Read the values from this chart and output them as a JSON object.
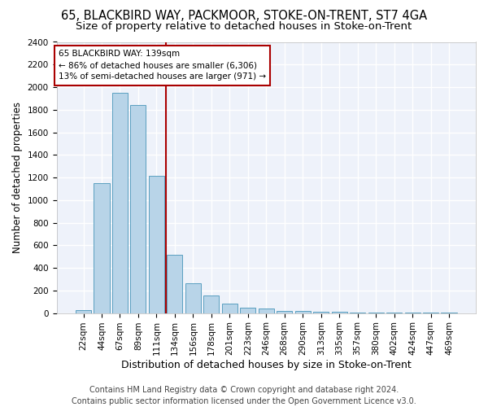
{
  "title1": "65, BLACKBIRD WAY, PACKMOOR, STOKE-ON-TRENT, ST7 4GA",
  "title2": "Size of property relative to detached houses in Stoke-on-Trent",
  "xlabel": "Distribution of detached houses by size in Stoke-on-Trent",
  "ylabel": "Number of detached properties",
  "categories": [
    "22sqm",
    "44sqm",
    "67sqm",
    "89sqm",
    "111sqm",
    "134sqm",
    "156sqm",
    "178sqm",
    "201sqm",
    "223sqm",
    "246sqm",
    "268sqm",
    "290sqm",
    "313sqm",
    "335sqm",
    "357sqm",
    "380sqm",
    "402sqm",
    "424sqm",
    "447sqm",
    "469sqm"
  ],
  "values": [
    28,
    1150,
    1950,
    1840,
    1215,
    515,
    265,
    155,
    80,
    48,
    42,
    20,
    18,
    10,
    10,
    5,
    5,
    2,
    2,
    2,
    2
  ],
  "bar_color": "#b8d4e8",
  "bar_edge_color": "#5a9fc0",
  "vline_x_index": 5,
  "vline_color": "#aa0000",
  "annotation_line1": "65 BLACKBIRD WAY: 139sqm",
  "annotation_line2": "← 86% of detached houses are smaller (6,306)",
  "annotation_line3": "13% of semi-detached houses are larger (971) →",
  "annotation_box_facecolor": "#ffffff",
  "annotation_box_edgecolor": "#aa0000",
  "ylim": [
    0,
    2400
  ],
  "yticks": [
    0,
    200,
    400,
    600,
    800,
    1000,
    1200,
    1400,
    1600,
    1800,
    2000,
    2200,
    2400
  ],
  "footer1": "Contains HM Land Registry data © Crown copyright and database right 2024.",
  "footer2": "Contains public sector information licensed under the Open Government Licence v3.0.",
  "fig_bg_color": "#ffffff",
  "plot_bg_color": "#eef2fa",
  "grid_color": "#ffffff",
  "title1_fontsize": 10.5,
  "title2_fontsize": 9.5,
  "xlabel_fontsize": 9,
  "ylabel_fontsize": 8.5,
  "tick_fontsize": 7.5,
  "annotation_fontsize": 7.5,
  "footer_fontsize": 7
}
